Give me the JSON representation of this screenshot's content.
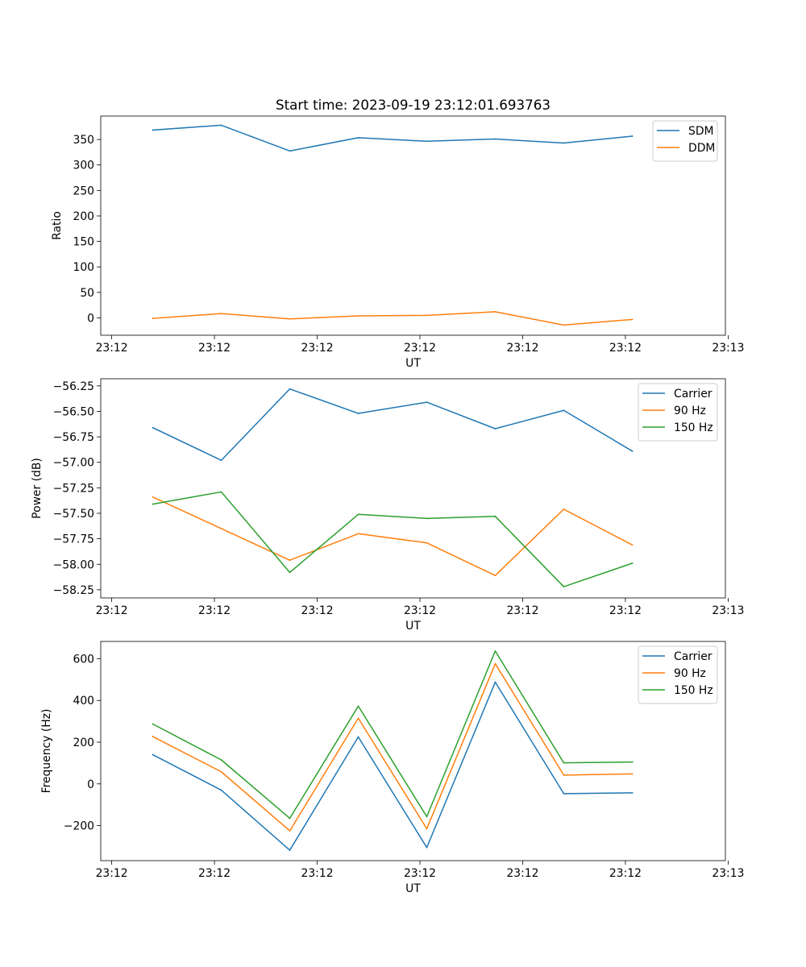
{
  "figure": {
    "title": "Start time: 2023-09-19 23:12:01.693763"
  },
  "chart_data": [
    {
      "type": "line",
      "xlabel": "UT",
      "ylabel": "Ratio",
      "x": [
        1,
        2,
        3,
        4,
        5,
        6,
        7,
        8
      ],
      "xlim": [
        0.24,
        9.36
      ],
      "xticks": [
        0.4,
        1.9,
        3.4,
        4.9,
        6.4,
        7.9,
        9.4
      ],
      "xtick_labels": [
        "23:12",
        "23:12",
        "23:12",
        "23:12",
        "23:12",
        "23:12",
        "23:13"
      ],
      "ylim": [
        -34,
        396
      ],
      "yticks": [
        0,
        50,
        100,
        150,
        200,
        250,
        300,
        350
      ],
      "ytick_labels": [
        "0",
        "50",
        "100",
        "150",
        "200",
        "250",
        "300",
        "350"
      ],
      "legend_position": "top-right",
      "series": [
        {
          "name": "SDM",
          "color": "#1f77b4",
          "values": [
            368.5,
            378.0,
            327.5,
            353.5,
            346.5,
            351.0,
            343.0,
            356.5
          ]
        },
        {
          "name": "DDM",
          "color": "#ff7f0e",
          "values": [
            -1.0,
            8.5,
            -2.0,
            4.0,
            5.0,
            12.0,
            -14.0,
            -3.0
          ]
        }
      ]
    },
    {
      "type": "line",
      "xlabel": "UT",
      "ylabel": "Power (dB)",
      "x": [
        1,
        2,
        3,
        4,
        5,
        6,
        7,
        8
      ],
      "xlim": [
        0.24,
        9.36
      ],
      "xticks": [
        0.4,
        1.9,
        3.4,
        4.9,
        6.4,
        7.9,
        9.4
      ],
      "xtick_labels": [
        "23:12",
        "23:12",
        "23:12",
        "23:12",
        "23:12",
        "23:12",
        "23:13"
      ],
      "ylim": [
        -58.33,
        -56.18
      ],
      "yticks": [
        -56.25,
        -56.5,
        -56.75,
        -57.0,
        -57.25,
        -57.5,
        -57.75,
        -58.0,
        -58.25
      ],
      "ytick_labels": [
        "−56.25",
        "−56.50",
        "−56.75",
        "−57.00",
        "−57.25",
        "−57.50",
        "−57.75",
        "−58.00",
        "−58.25"
      ],
      "legend_position": "top-right",
      "series": [
        {
          "name": "Carrier",
          "color": "#1f77b4",
          "values": [
            -56.66,
            -56.98,
            -56.28,
            -56.52,
            -56.41,
            -56.67,
            -56.49,
            -56.89
          ]
        },
        {
          "name": "90 Hz",
          "color": "#ff7f0e",
          "values": [
            -57.34,
            -57.65,
            -57.96,
            -57.7,
            -57.79,
            -58.11,
            -57.46,
            -57.81
          ]
        },
        {
          "name": "150 Hz",
          "color": "#2ca02c",
          "values": [
            -57.41,
            -57.29,
            -58.08,
            -57.51,
            -57.55,
            -57.53,
            -58.22,
            -57.99
          ]
        }
      ]
    },
    {
      "type": "line",
      "xlabel": "UT",
      "ylabel": "Frequency (Hz)",
      "x": [
        1,
        2,
        3,
        4,
        5,
        6,
        7,
        8
      ],
      "xlim": [
        0.24,
        9.36
      ],
      "xticks": [
        0.4,
        1.9,
        3.4,
        4.9,
        6.4,
        7.9,
        9.4
      ],
      "xtick_labels": [
        "23:12",
        "23:12",
        "23:12",
        "23:12",
        "23:12",
        "23:12",
        "23:13"
      ],
      "ylim": [
        -368,
        683
      ],
      "yticks": [
        -200,
        0,
        200,
        400,
        600
      ],
      "ytick_labels": [
        "−200",
        "0",
        "200",
        "400",
        "600"
      ],
      "legend_position": "top-right",
      "series": [
        {
          "name": "Carrier",
          "color": "#1f77b4",
          "values": [
            140,
            -30,
            -318,
            225,
            -305,
            488,
            -47,
            -43
          ]
        },
        {
          "name": "90 Hz",
          "color": "#ff7f0e",
          "values": [
            227,
            58,
            -225,
            315,
            -215,
            576,
            42,
            48
          ]
        },
        {
          "name": "150 Hz",
          "color": "#2ca02c",
          "values": [
            287,
            115,
            -165,
            373,
            -157,
            637,
            101,
            105
          ]
        }
      ]
    }
  ]
}
